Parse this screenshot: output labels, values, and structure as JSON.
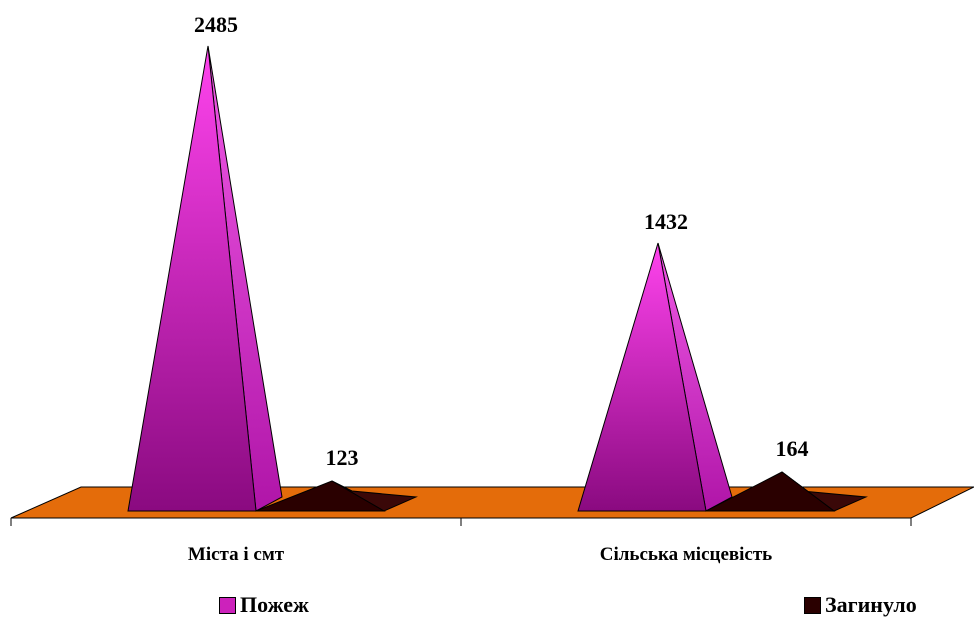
{
  "chart_data": {
    "type": "bar",
    "style": "3d-pyramid",
    "categories": [
      "Міста і смт",
      "Сільська місцевість"
    ],
    "series": [
      {
        "name": "Пожеж",
        "values": [
          2485,
          1432
        ],
        "color": "#cc22bb"
      },
      {
        "name": "Загинуло",
        "values": [
          123,
          164
        ],
        "color": "#2a0000"
      }
    ],
    "data_labels": true,
    "floor_color": "#e46c0a",
    "legend_position": "bottom",
    "grid": false
  }
}
